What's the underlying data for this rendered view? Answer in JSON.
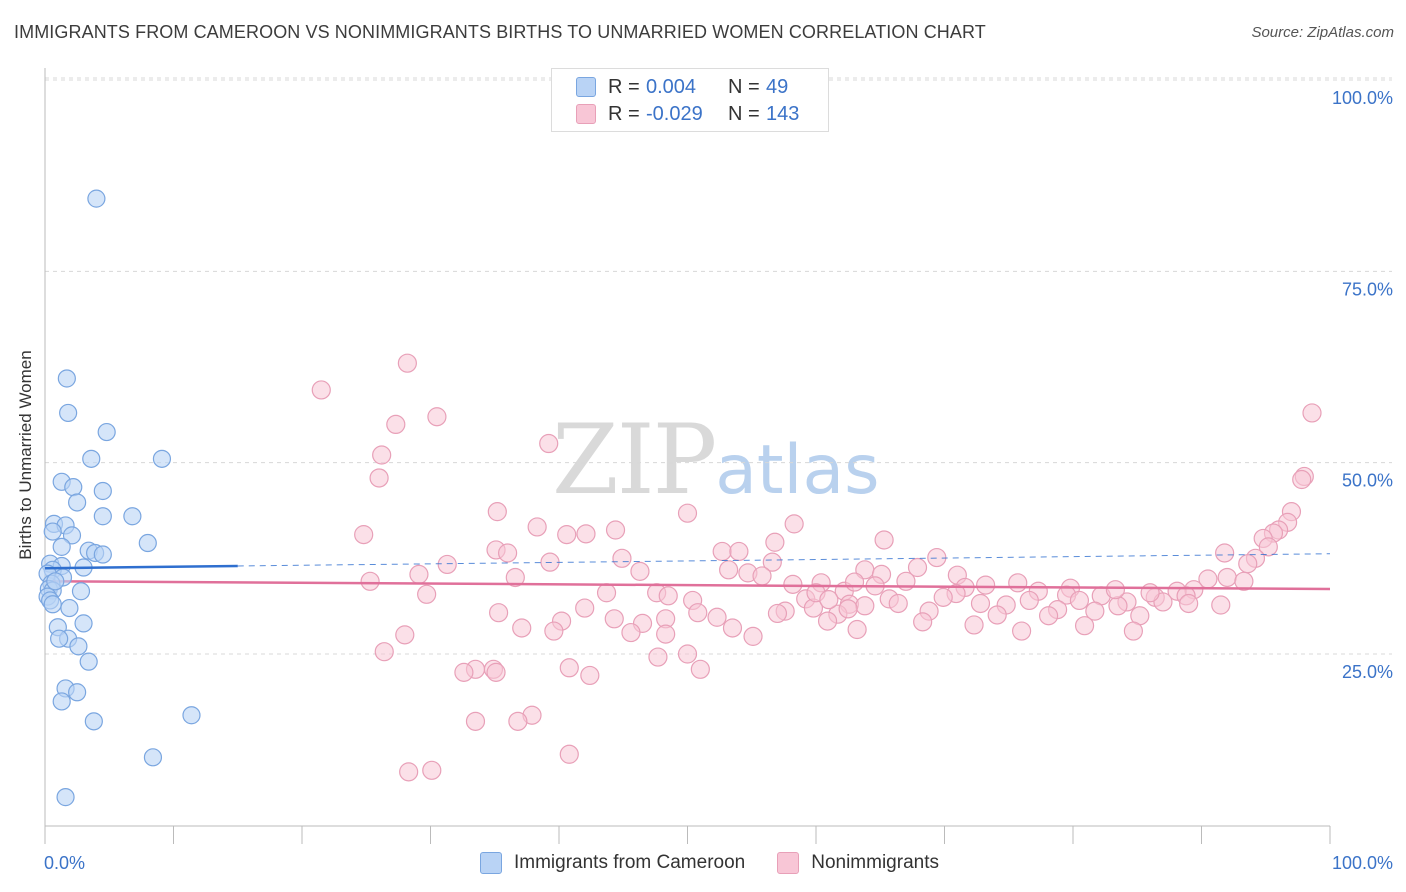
{
  "title": "IMMIGRANTS FROM CAMEROON VS NONIMMIGRANTS BIRTHS TO UNMARRIED WOMEN CORRELATION CHART",
  "source": "Source: ZipAtlas.com",
  "watermark": {
    "zip": "ZIP",
    "atlas": "atlas"
  },
  "colors": {
    "blue_fill": "#b9d3f5",
    "blue_stroke": "#7aa6e0",
    "blue_line": "#2f6fcf",
    "pink_fill": "#f8c6d6",
    "pink_stroke": "#e8a0b8",
    "pink_line": "#e0709a",
    "accent_text": "#3b73c8"
  },
  "legend_top": [
    {
      "r_label": "R =",
      "r_value": "0.004",
      "n_label": "N =",
      "n_value": "49"
    },
    {
      "r_label": "R =",
      "r_value": "-0.029",
      "n_label": "N =",
      "n_value": "143"
    }
  ],
  "legend_bottom": [
    "Immigrants from Cameroon",
    "Nonimmigrants"
  ],
  "chart_data": {
    "type": "scatter",
    "title": "IMMIGRANTS FROM CAMEROON VS NONIMMIGRANTS BIRTHS TO UNMARRIED WOMEN CORRELATION CHART",
    "xlabel": "",
    "ylabel": "Births to Unmarried Women",
    "xlim": [
      0,
      100
    ],
    "ylim": [
      0,
      104
    ],
    "x_tick_labels": [
      "0.0%",
      "100.0%"
    ],
    "y_ticks": [
      25,
      50,
      75,
      100
    ],
    "y_tick_labels": [
      "25.0%",
      "50.0%",
      "75.0%",
      "100.0%"
    ],
    "grid": true,
    "legend_placement": "top-center and bottom",
    "series": [
      {
        "name": "Immigrants from Cameroon",
        "r": 0.004,
        "n": 49,
        "trend": {
          "x": [
            0,
            15
          ],
          "y": [
            36.2,
            36.5
          ],
          "dashed_extension_to": [
            100,
            38.1
          ]
        },
        "points": [
          [
            4.0,
            84.5
          ],
          [
            1.7,
            61.0
          ],
          [
            1.8,
            56.5
          ],
          [
            4.8,
            54.0
          ],
          [
            3.6,
            50.5
          ],
          [
            9.1,
            50.5
          ],
          [
            1.3,
            47.5
          ],
          [
            2.2,
            46.8
          ],
          [
            4.5,
            46.3
          ],
          [
            2.5,
            44.8
          ],
          [
            0.7,
            42.0
          ],
          [
            1.6,
            41.8
          ],
          [
            4.5,
            43.0
          ],
          [
            6.8,
            43.0
          ],
          [
            0.6,
            41.0
          ],
          [
            2.1,
            40.5
          ],
          [
            8.0,
            39.5
          ],
          [
            1.3,
            39.0
          ],
          [
            3.4,
            38.5
          ],
          [
            3.9,
            38.2
          ],
          [
            4.5,
            38.0
          ],
          [
            0.4,
            36.8
          ],
          [
            1.3,
            36.5
          ],
          [
            3.0,
            36.3
          ],
          [
            0.6,
            36.0
          ],
          [
            0.2,
            35.5
          ],
          [
            1.4,
            35.0
          ],
          [
            0.5,
            34.2
          ],
          [
            0.3,
            33.5
          ],
          [
            0.6,
            33.3
          ],
          [
            2.8,
            33.2
          ],
          [
            0.2,
            32.5
          ],
          [
            0.4,
            32.0
          ],
          [
            0.6,
            31.5
          ],
          [
            1.9,
            31.0
          ],
          [
            3.0,
            29.0
          ],
          [
            1.0,
            28.5
          ],
          [
            1.8,
            27.0
          ],
          [
            1.1,
            27.0
          ],
          [
            2.6,
            26.0
          ],
          [
            3.4,
            24.0
          ],
          [
            1.6,
            20.5
          ],
          [
            2.5,
            20.0
          ],
          [
            1.3,
            18.8
          ],
          [
            11.4,
            17.0
          ],
          [
            3.8,
            16.2
          ],
          [
            8.4,
            11.5
          ],
          [
            1.6,
            6.3
          ],
          [
            0.8,
            34.5
          ]
        ]
      },
      {
        "name": "Nonimmigrants",
        "r": -0.029,
        "n": 143,
        "trend": {
          "x": [
            0,
            100
          ],
          "y": [
            34.5,
            33.5
          ]
        },
        "points": [
          [
            28.2,
            63.0
          ],
          [
            21.5,
            59.5
          ],
          [
            30.5,
            56.0
          ],
          [
            27.3,
            55.0
          ],
          [
            39.2,
            52.5
          ],
          [
            26.2,
            51.0
          ],
          [
            26.0,
            48.0
          ],
          [
            35.2,
            43.6
          ],
          [
            50.0,
            43.4
          ],
          [
            58.3,
            42.0
          ],
          [
            38.3,
            41.6
          ],
          [
            44.4,
            41.2
          ],
          [
            42.1,
            40.7
          ],
          [
            24.8,
            40.6
          ],
          [
            40.6,
            40.6
          ],
          [
            65.3,
            39.9
          ],
          [
            56.8,
            39.6
          ],
          [
            35.1,
            38.6
          ],
          [
            36.0,
            38.2
          ],
          [
            52.7,
            38.4
          ],
          [
            44.9,
            37.5
          ],
          [
            69.4,
            37.6
          ],
          [
            39.3,
            37.0
          ],
          [
            56.6,
            37.0
          ],
          [
            31.3,
            36.7
          ],
          [
            67.9,
            36.3
          ],
          [
            63.8,
            36.0
          ],
          [
            46.3,
            35.8
          ],
          [
            54.7,
            35.6
          ],
          [
            29.1,
            35.4
          ],
          [
            65.1,
            35.4
          ],
          [
            71.0,
            35.3
          ],
          [
            55.8,
            35.2
          ],
          [
            36.6,
            35.0
          ],
          [
            25.3,
            34.5
          ],
          [
            67.0,
            34.5
          ],
          [
            60.4,
            34.3
          ],
          [
            75.7,
            34.3
          ],
          [
            73.2,
            34.0
          ],
          [
            64.6,
            33.9
          ],
          [
            71.6,
            33.7
          ],
          [
            79.8,
            33.6
          ],
          [
            62.2,
            33.2
          ],
          [
            77.3,
            33.2
          ],
          [
            43.7,
            33.0
          ],
          [
            47.6,
            33.0
          ],
          [
            70.9,
            32.9
          ],
          [
            79.5,
            32.7
          ],
          [
            29.7,
            32.8
          ],
          [
            48.5,
            32.6
          ],
          [
            82.2,
            32.6
          ],
          [
            69.9,
            32.4
          ],
          [
            59.2,
            32.2
          ],
          [
            65.7,
            32.2
          ],
          [
            50.4,
            32.0
          ],
          [
            76.6,
            32.0
          ],
          [
            80.5,
            32.0
          ],
          [
            84.2,
            31.8
          ],
          [
            66.4,
            31.6
          ],
          [
            72.8,
            31.6
          ],
          [
            62.6,
            31.5
          ],
          [
            74.8,
            31.4
          ],
          [
            63.8,
            31.3
          ],
          [
            83.5,
            31.3
          ],
          [
            42.0,
            31.0
          ],
          [
            59.8,
            31.0
          ],
          [
            78.8,
            30.8
          ],
          [
            57.6,
            30.6
          ],
          [
            68.8,
            30.6
          ],
          [
            81.7,
            30.6
          ],
          [
            35.3,
            30.4
          ],
          [
            50.8,
            30.4
          ],
          [
            57.0,
            30.3
          ],
          [
            61.7,
            30.2
          ],
          [
            74.1,
            30.1
          ],
          [
            78.1,
            30.0
          ],
          [
            85.2,
            30.0
          ],
          [
            52.3,
            29.8
          ],
          [
            44.3,
            29.6
          ],
          [
            48.3,
            29.6
          ],
          [
            40.2,
            29.3
          ],
          [
            60.9,
            29.3
          ],
          [
            68.3,
            29.2
          ],
          [
            46.5,
            29.0
          ],
          [
            72.3,
            28.8
          ],
          [
            80.9,
            28.7
          ],
          [
            37.1,
            28.4
          ],
          [
            53.5,
            28.4
          ],
          [
            63.2,
            28.2
          ],
          [
            39.6,
            28.0
          ],
          [
            84.7,
            28.0
          ],
          [
            45.6,
            27.8
          ],
          [
            48.3,
            27.6
          ],
          [
            28.0,
            27.5
          ],
          [
            55.1,
            27.3
          ],
          [
            26.4,
            25.3
          ],
          [
            50.0,
            25.0
          ],
          [
            47.7,
            24.6
          ],
          [
            40.8,
            23.2
          ],
          [
            51.0,
            23.0
          ],
          [
            33.5,
            23.0
          ],
          [
            34.9,
            23.0
          ],
          [
            32.6,
            22.6
          ],
          [
            35.1,
            22.6
          ],
          [
            42.4,
            22.2
          ],
          [
            37.9,
            17.0
          ],
          [
            36.8,
            16.2
          ],
          [
            33.5,
            16.2
          ],
          [
            40.8,
            11.9
          ],
          [
            30.1,
            9.8
          ],
          [
            28.3,
            9.6
          ],
          [
            98.6,
            56.5
          ],
          [
            98.0,
            48.2
          ],
          [
            97.8,
            47.8
          ],
          [
            97.0,
            43.6
          ],
          [
            96.7,
            42.2
          ],
          [
            96.0,
            41.2
          ],
          [
            95.6,
            40.8
          ],
          [
            94.8,
            40.1
          ],
          [
            95.2,
            39.0
          ],
          [
            94.2,
            37.5
          ],
          [
            93.6,
            36.8
          ],
          [
            91.8,
            38.2
          ],
          [
            92.0,
            35.0
          ],
          [
            93.3,
            34.5
          ],
          [
            90.5,
            34.8
          ],
          [
            89.4,
            33.4
          ],
          [
            88.1,
            33.2
          ],
          [
            88.8,
            32.6
          ],
          [
            86.4,
            32.4
          ],
          [
            87.0,
            31.8
          ],
          [
            89.0,
            31.6
          ],
          [
            91.5,
            31.4
          ],
          [
            86.0,
            33.0
          ],
          [
            83.3,
            33.4
          ],
          [
            76.0,
            28.0
          ],
          [
            54.0,
            38.4
          ],
          [
            53.2,
            36.0
          ],
          [
            58.2,
            34.1
          ],
          [
            60.0,
            33.0
          ],
          [
            63.0,
            34.4
          ],
          [
            61.0,
            32.1
          ],
          [
            62.5,
            30.9
          ]
        ]
      }
    ]
  }
}
